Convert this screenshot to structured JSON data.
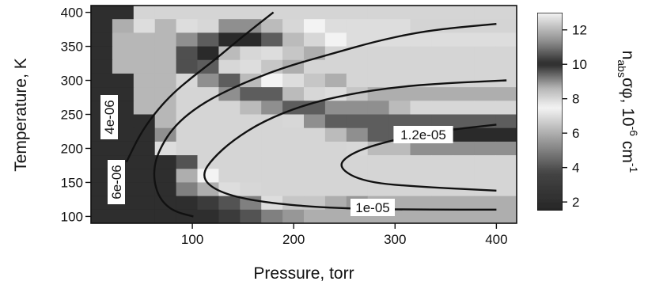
{
  "chart_data": {
    "type": "heatmap",
    "title": "",
    "xlabel": "Pressure, torr",
    "ylabel": "Temperature, K",
    "xlim": [
      0,
      420
    ],
    "ylim": [
      90,
      410
    ],
    "x_ticks": [
      100,
      200,
      300,
      400
    ],
    "y_ticks": [
      100,
      150,
      200,
      250,
      300,
      350,
      400
    ],
    "grid": false,
    "colorbar": {
      "label_main": "n",
      "label_sub": "abs",
      "label_rest": "σφ, 10",
      "label_exp": "-6",
      "label_unit": " cm",
      "label_unit_exp": "-1",
      "range": [
        1.5,
        13
      ],
      "ticks": [
        "2",
        "4",
        "6",
        "8",
        "10",
        "12"
      ],
      "palette": [
        [
          0,
          "#262626"
        ],
        [
          0.19,
          "#444444"
        ],
        [
          0.38,
          "#a8a8a8"
        ],
        [
          0.52,
          "#f4f4f4"
        ],
        [
          0.62,
          "#b4b4b4"
        ],
        [
          0.74,
          "#2a2a2a"
        ],
        [
          0.85,
          "#8a8a8a"
        ],
        [
          1,
          "#f4f4f4"
        ]
      ]
    },
    "grid_data": {
      "x_edges": [
        0,
        21,
        42,
        63,
        84,
        105,
        126,
        147,
        168,
        189,
        210,
        231,
        252,
        273,
        294,
        315,
        336,
        357,
        378,
        399,
        420
      ],
      "y_edges": [
        90,
        110,
        130,
        150,
        170,
        190,
        210,
        230,
        250,
        270,
        290,
        310,
        330,
        350,
        370,
        390,
        410
      ],
      "values": [
        [
          2,
          2,
          12.5,
          12.5,
          12.5,
          12.5,
          12.5,
          12.5,
          12.5,
          12.5,
          12.5,
          12.5,
          12.5,
          12.5,
          12.5,
          12.5,
          12.5,
          12.5,
          12.5,
          12.5
        ],
        [
          2,
          6,
          7,
          12,
          7,
          8,
          9,
          9,
          8.5,
          8,
          7.5,
          7,
          7,
          7,
          7,
          6.8,
          6.8,
          6.8,
          6.8,
          6.8
        ],
        [
          2,
          12,
          12,
          12,
          9,
          9.5,
          10,
          10,
          9.5,
          8.5,
          8,
          7.5,
          7,
          7,
          7,
          7,
          7,
          7,
          7,
          7
        ],
        [
          2,
          12,
          12,
          12,
          10.5,
          10,
          8.5,
          8,
          7,
          6.5,
          6,
          12.5,
          12.5,
          12.5,
          12.5,
          12.5,
          12.5,
          12.5,
          12.5,
          12.5
        ],
        [
          2,
          12,
          12,
          12,
          10.5,
          9.5,
          8,
          7,
          6.5,
          6,
          12.5,
          12.5,
          12.5,
          12.5,
          12.5,
          12.5,
          12.5,
          12.5,
          12.5,
          12.5
        ],
        [
          2,
          2,
          12,
          12,
          8,
          9,
          9.5,
          8.5,
          7.5,
          7,
          6.5,
          6,
          12.5,
          12.5,
          12.5,
          12.5,
          12.5,
          12.5,
          12.5,
          12.5
        ],
        [
          2,
          2,
          12,
          12,
          12.5,
          12.5,
          9,
          9.5,
          9.5,
          8.5,
          8,
          7,
          6.5,
          6,
          6,
          6,
          6,
          6,
          6,
          6
        ],
        [
          2,
          2,
          12,
          12,
          12.5,
          12.5,
          12.5,
          8.5,
          9,
          9.5,
          9.5,
          9,
          9,
          9,
          8.5,
          8,
          8,
          8,
          8,
          8
        ],
        [
          2,
          2,
          2,
          12,
          12.5,
          12.5,
          12.5,
          12.5,
          12.5,
          8,
          9,
          9.5,
          9.5,
          9.5,
          9.5,
          9.5,
          9.5,
          9.5,
          9.5,
          9.5
        ],
        [
          2,
          2,
          2,
          9,
          12.5,
          12.5,
          12.5,
          12.5,
          12.5,
          12.5,
          12.5,
          8.5,
          9,
          9.5,
          9.5,
          10,
          10,
          10,
          10,
          10
        ],
        [
          2,
          2,
          2,
          7,
          12.5,
          12.5,
          12.5,
          12.5,
          12.5,
          12.5,
          12.5,
          12.5,
          8,
          8.5,
          8.5,
          9,
          9,
          9,
          9,
          9
        ],
        [
          2,
          2,
          2,
          2,
          4,
          12.5,
          12.5,
          12.5,
          12.5,
          12.5,
          12.5,
          12.5,
          12.5,
          12.5,
          12.5,
          12.5,
          12.5,
          12.5,
          12.5,
          12.5
        ],
        [
          2,
          2,
          2,
          2,
          6,
          7.5,
          12.5,
          12.5,
          12.5,
          12.5,
          12.5,
          12.5,
          12.5,
          12.5,
          12.5,
          12.5,
          12.5,
          12.5,
          12.5,
          12.5
        ],
        [
          2,
          2,
          2,
          2,
          5,
          6,
          7,
          8,
          12.5,
          12.5,
          12.5,
          12.5,
          12.5,
          12.5,
          12.5,
          12.5,
          12.5,
          12.5,
          12.5,
          12.5
        ],
        [
          2,
          2,
          2,
          2,
          2,
          3,
          4,
          5,
          7,
          6.5,
          6.5,
          6,
          5.5,
          6,
          6,
          6,
          6,
          6,
          6,
          6
        ],
        [
          2,
          2,
          2,
          2,
          2,
          2,
          3,
          4,
          5,
          5.5,
          6,
          6,
          6,
          6,
          6,
          6,
          6,
          6,
          6,
          6
        ]
      ]
    },
    "contours": [
      {
        "label": "4e-06",
        "points": [
          [
            35,
            180
          ],
          [
            48,
            220
          ],
          [
            62,
            250
          ],
          [
            80,
            280
          ],
          [
            100,
            305
          ],
          [
            122,
            330
          ],
          [
            150,
            365
          ],
          [
            180,
            400
          ]
        ]
      },
      {
        "label": "6e-06",
        "points": [
          [
            101,
            100
          ],
          [
            85,
            106
          ],
          [
            74,
            116
          ],
          [
            66,
            132
          ],
          [
            62,
            155
          ],
          [
            63,
            180
          ],
          [
            70,
            205
          ],
          [
            80,
            228
          ],
          [
            95,
            250
          ],
          [
            118,
            273
          ],
          [
            150,
            296
          ],
          [
            190,
            319
          ],
          [
            235,
            338
          ],
          [
            280,
            357
          ],
          [
            320,
            370
          ],
          [
            355,
            377
          ],
          [
            400,
            383
          ]
        ]
      },
      {
        "label": "1e-05",
        "points": [
          [
            400,
            110
          ],
          [
            330,
            110
          ],
          [
            270,
            111
          ],
          [
            220,
            114
          ],
          [
            175,
            120
          ],
          [
            138,
            130
          ],
          [
            116,
            145
          ],
          [
            110,
            163
          ],
          [
            120,
            185
          ],
          [
            140,
            212
          ],
          [
            170,
            240
          ],
          [
            210,
            264
          ],
          [
            255,
            280
          ],
          [
            300,
            290
          ],
          [
            350,
            296
          ],
          [
            410,
            300
          ]
        ]
      },
      {
        "label": "1.2e-05",
        "points": [
          [
            400,
            138
          ],
          [
            330,
            143
          ],
          [
            270,
            150
          ],
          [
            243,
            172
          ],
          [
            255,
            192
          ],
          [
            290,
            210
          ],
          [
            345,
            226
          ],
          [
            400,
            235
          ]
        ]
      }
    ]
  }
}
